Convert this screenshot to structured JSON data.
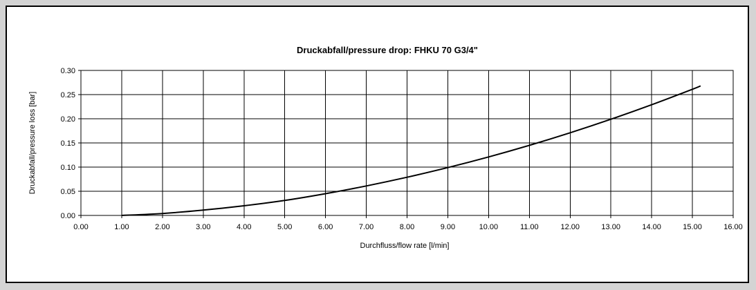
{
  "chart_data": {
    "type": "line",
    "title": "Druckabfall/pressure drop: FHKU 70 G3/4\"",
    "xlabel": "Durchfluss/flow rate [l/min]",
    "ylabel": "Druckabfall/pressure loss [bar]",
    "xlim": [
      0,
      16
    ],
    "ylim": [
      0,
      0.3
    ],
    "x_ticks": [
      "0.00",
      "1.00",
      "2.00",
      "3.00",
      "4.00",
      "5.00",
      "6.00",
      "7.00",
      "8.00",
      "9.00",
      "10.00",
      "11.00",
      "12.00",
      "13.00",
      "14.00",
      "15.00",
      "16.00"
    ],
    "y_ticks": [
      "0.00",
      "0.05",
      "0.10",
      "0.15",
      "0.20",
      "0.25",
      "0.30"
    ],
    "grid": true,
    "legend": "none",
    "series": [
      {
        "x": [
          1.0,
          2.0,
          3.0,
          4.0,
          5.0,
          6.0,
          7.0,
          8.0,
          9.0,
          10.0,
          11.0,
          12.0,
          13.0,
          14.0,
          15.0,
          15.2
        ],
        "y": [
          0.0,
          0.004,
          0.011,
          0.02,
          0.031,
          0.045,
          0.061,
          0.079,
          0.099,
          0.121,
          0.145,
          0.171,
          0.199,
          0.229,
          0.261,
          0.268
        ]
      }
    ],
    "colors": {
      "line": "#000000",
      "grid": "#000000",
      "background": "#ffffff",
      "outer": "#d4d4d4"
    }
  }
}
